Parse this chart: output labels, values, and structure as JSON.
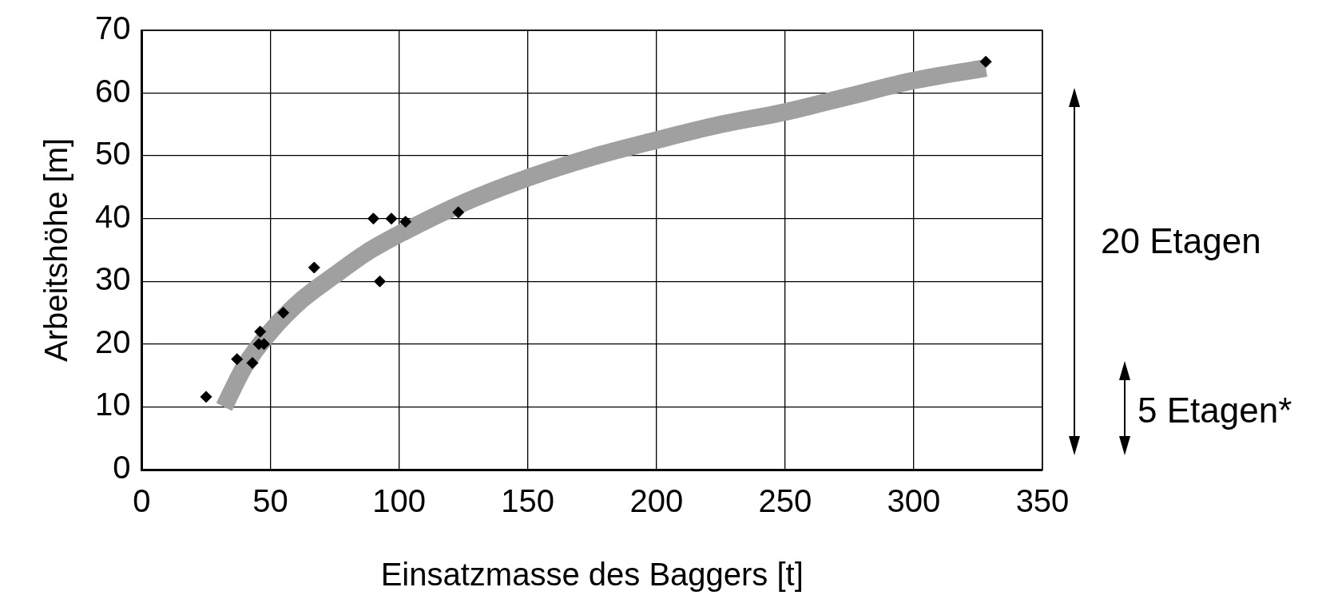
{
  "chart_data": {
    "type": "scatter",
    "xlabel": "Einsatzmasse des Baggers [t]",
    "ylabel": "Arbeitshöhe [m]",
    "xlim": [
      0,
      350
    ],
    "xticks": [
      0,
      50,
      100,
      150,
      200,
      250,
      300,
      350
    ],
    "ylim": [
      0,
      70
    ],
    "yticks": [
      0,
      10,
      20,
      30,
      40,
      50,
      60,
      70
    ],
    "grid": true,
    "legend": false,
    "marker": "diamond",
    "series": [
      {
        "type": "line",
        "color": "#a0a0a0",
        "marker": "none",
        "x": [
          32,
          40,
          50,
          62,
          75,
          87,
          100,
          125,
          150,
          175,
          200,
          225,
          250,
          275,
          300,
          328
        ],
        "values": [
          10,
          16.5,
          22,
          27,
          31,
          34.5,
          37.5,
          42.5,
          46.5,
          49.8,
          52.5,
          55,
          57,
          59.5,
          62,
          64
        ]
      },
      {
        "type": "scatter",
        "color": "#000000",
        "x": [
          25,
          37,
          43,
          46,
          45.5,
          47.5,
          55,
          67,
          90,
          97,
          92.5,
          102.5,
          123,
          328
        ],
        "values": [
          11.6,
          17.6,
          17,
          22,
          20,
          20,
          25,
          32.2,
          40,
          40,
          30,
          39.5,
          41,
          65
        ]
      }
    ],
    "annotations": [
      "20 Etagen",
      "5 Etagen*"
    ]
  }
}
